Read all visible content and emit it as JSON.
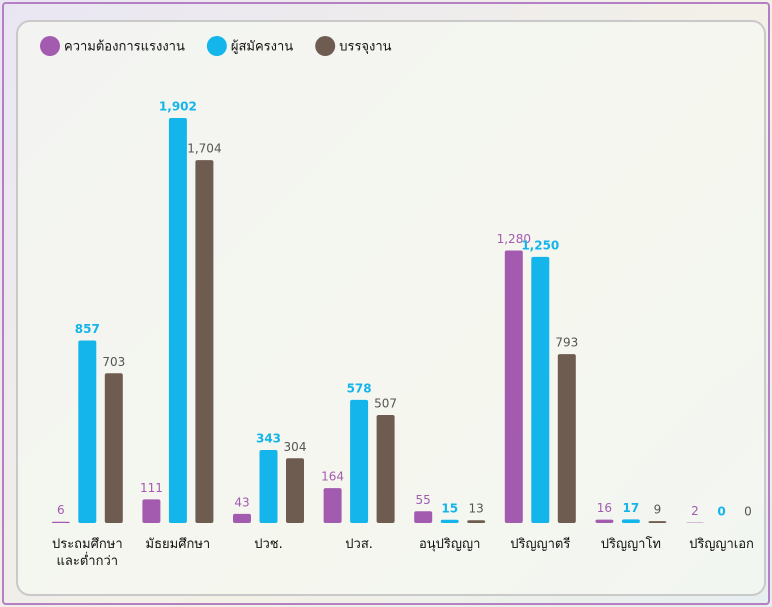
{
  "chart_data": {
    "type": "bar",
    "categories": [
      "ประถมศึกษา\nและต่ำกว่า",
      "มัธยมศึกษา",
      "ปวช.",
      "ปวส.",
      "อนุปริญญา",
      "ปริญญาตรี",
      "ปริญญาโท",
      "ปริญญาเอก"
    ],
    "series": [
      {
        "name": "ความต้องการแรงงาน",
        "color": "#a35bb0",
        "values": [
          6,
          111,
          43,
          164,
          55,
          1280,
          16,
          2
        ],
        "value_labels": [
          "6",
          "111",
          "43",
          "164",
          "55",
          "1,280",
          "16",
          "2"
        ]
      },
      {
        "name": "ผู้สมัครงาน",
        "color": "#14b5ea",
        "values": [
          857,
          1902,
          343,
          578,
          15,
          1250,
          17,
          0
        ],
        "value_labels": [
          "857",
          "1,902",
          "343",
          "578",
          "15",
          "1,250",
          "17",
          "0"
        ]
      },
      {
        "name": "บรรจุงาน",
        "color": "#6f5c50",
        "values": [
          703,
          1704,
          304,
          507,
          13,
          793,
          9,
          0
        ],
        "value_labels": [
          "703",
          "1,704",
          "304",
          "507",
          "13",
          "793",
          "9",
          "0"
        ]
      }
    ],
    "legend": "top-left"
  }
}
